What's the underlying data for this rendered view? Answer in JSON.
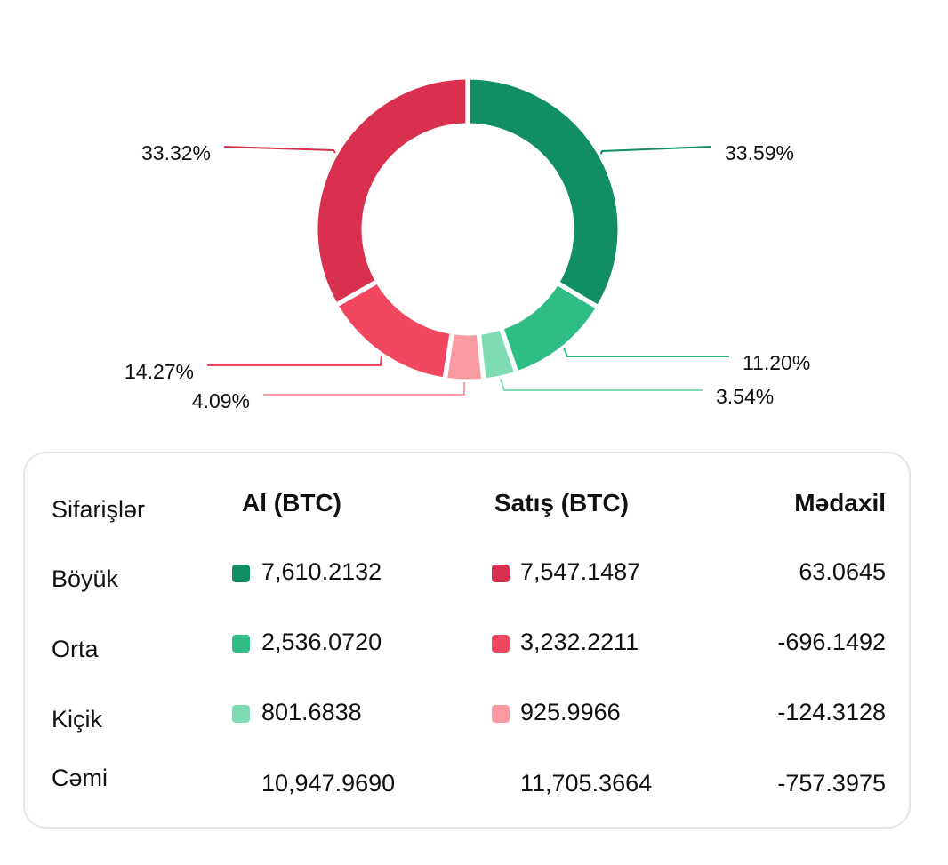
{
  "chart_data": {
    "type": "pie",
    "donut": true,
    "slices": [
      {
        "label": "Al Böyük",
        "value": 33.59,
        "label_text": "33.59%",
        "color": "#118f63"
      },
      {
        "label": "Al Orta",
        "value": 11.2,
        "label_text": "11.20%",
        "color": "#2fbd86"
      },
      {
        "label": "Al Kiçik",
        "value": 3.54,
        "label_text": "3.54%",
        "color": "#7fdbb3"
      },
      {
        "label": "Satış Kiçik",
        "value": 4.09,
        "label_text": "4.09%",
        "color": "#f89aa1"
      },
      {
        "label": "Satış Orta",
        "value": 14.27,
        "label_text": "14.27%",
        "color": "#f24760"
      },
      {
        "label": "Satış Böyük",
        "value": 33.32,
        "label_text": "33.32%",
        "color": "#d8304e"
      }
    ]
  },
  "table": {
    "headers": {
      "orders": "Sifarişlər",
      "buy": "Al (BTC)",
      "sell": "Satış (BTC)",
      "net": "Mədaxil"
    },
    "rows": [
      {
        "name": "Böyük",
        "buy": "7,610.2132",
        "buy_color": "#118f63",
        "sell": "7,547.1487",
        "sell_color": "#d8304e",
        "net": "63.0645"
      },
      {
        "name": "Orta",
        "buy": "2,536.0720",
        "buy_color": "#2fbd86",
        "sell": "3,232.2211",
        "sell_color": "#f24760",
        "net": "-696.1492"
      },
      {
        "name": "Kiçik",
        "buy": "801.6838",
        "buy_color": "#7fdbb3",
        "sell": "925.9966",
        "sell_color": "#f89aa1",
        "net": "-124.3128"
      }
    ],
    "total": {
      "name": "Cəmi",
      "buy": "10,947.9690",
      "sell": "11,705.3664",
      "net": "-757.3975"
    }
  }
}
